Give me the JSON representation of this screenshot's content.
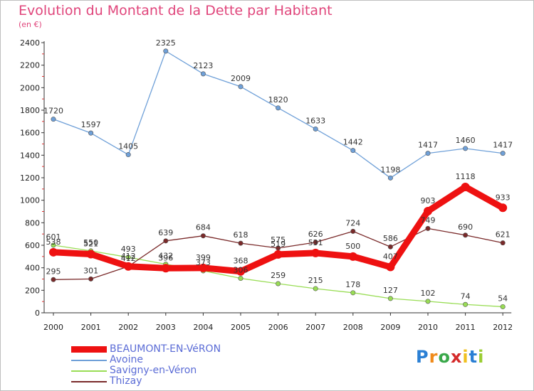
{
  "chart_data": {
    "type": "line",
    "title": "Evolution du Montant de la Dette par Habitant",
    "subtitle": "(en €)",
    "x": [
      "2000",
      "2001",
      "2002",
      "2003",
      "2004",
      "2005",
      "2006",
      "2007",
      "2008",
      "2009",
      "2010",
      "2011",
      "2012"
    ],
    "ylim": [
      0,
      2400
    ],
    "yticks": [
      0,
      200,
      400,
      600,
      800,
      1000,
      1200,
      1400,
      1600,
      1800,
      2000,
      2200,
      2400
    ],
    "grid": false,
    "legend_position": "bottom-left",
    "series": [
      {
        "name": "BEAUMONT-EN-VéRON",
        "color": "#ee1111",
        "values": [
          538,
          521,
          412,
          396,
          399,
          368,
          519,
          531,
          500,
          407,
          903,
          1118,
          933
        ]
      },
      {
        "name": "Avoine",
        "color": "#6fa0d8",
        "values": [
          1720,
          1597,
          1405,
          2325,
          2123,
          2009,
          1820,
          1633,
          1442,
          1198,
          1417,
          1460,
          1417
        ]
      },
      {
        "name": "Savigny-en-Véron",
        "color": "#99dd55",
        "values": [
          601,
          550,
          493,
          432,
          373,
          306,
          259,
          215,
          178,
          127,
          102,
          74,
          54
        ]
      },
      {
        "name": "Thizay",
        "color": "#7a2a2a",
        "values": [
          295,
          301,
          412,
          639,
          684,
          618,
          575,
          626,
          724,
          586,
          749,
          690,
          621
        ]
      }
    ]
  },
  "logo": {
    "letters": [
      "P",
      "r",
      "o",
      "x",
      "i",
      "t",
      "i"
    ],
    "colors": [
      "#2a7fd4",
      "#f08a1a",
      "#3aa84a",
      "#d42a2a",
      "#f0c020",
      "#2a7fd4",
      "#9acd32"
    ]
  }
}
